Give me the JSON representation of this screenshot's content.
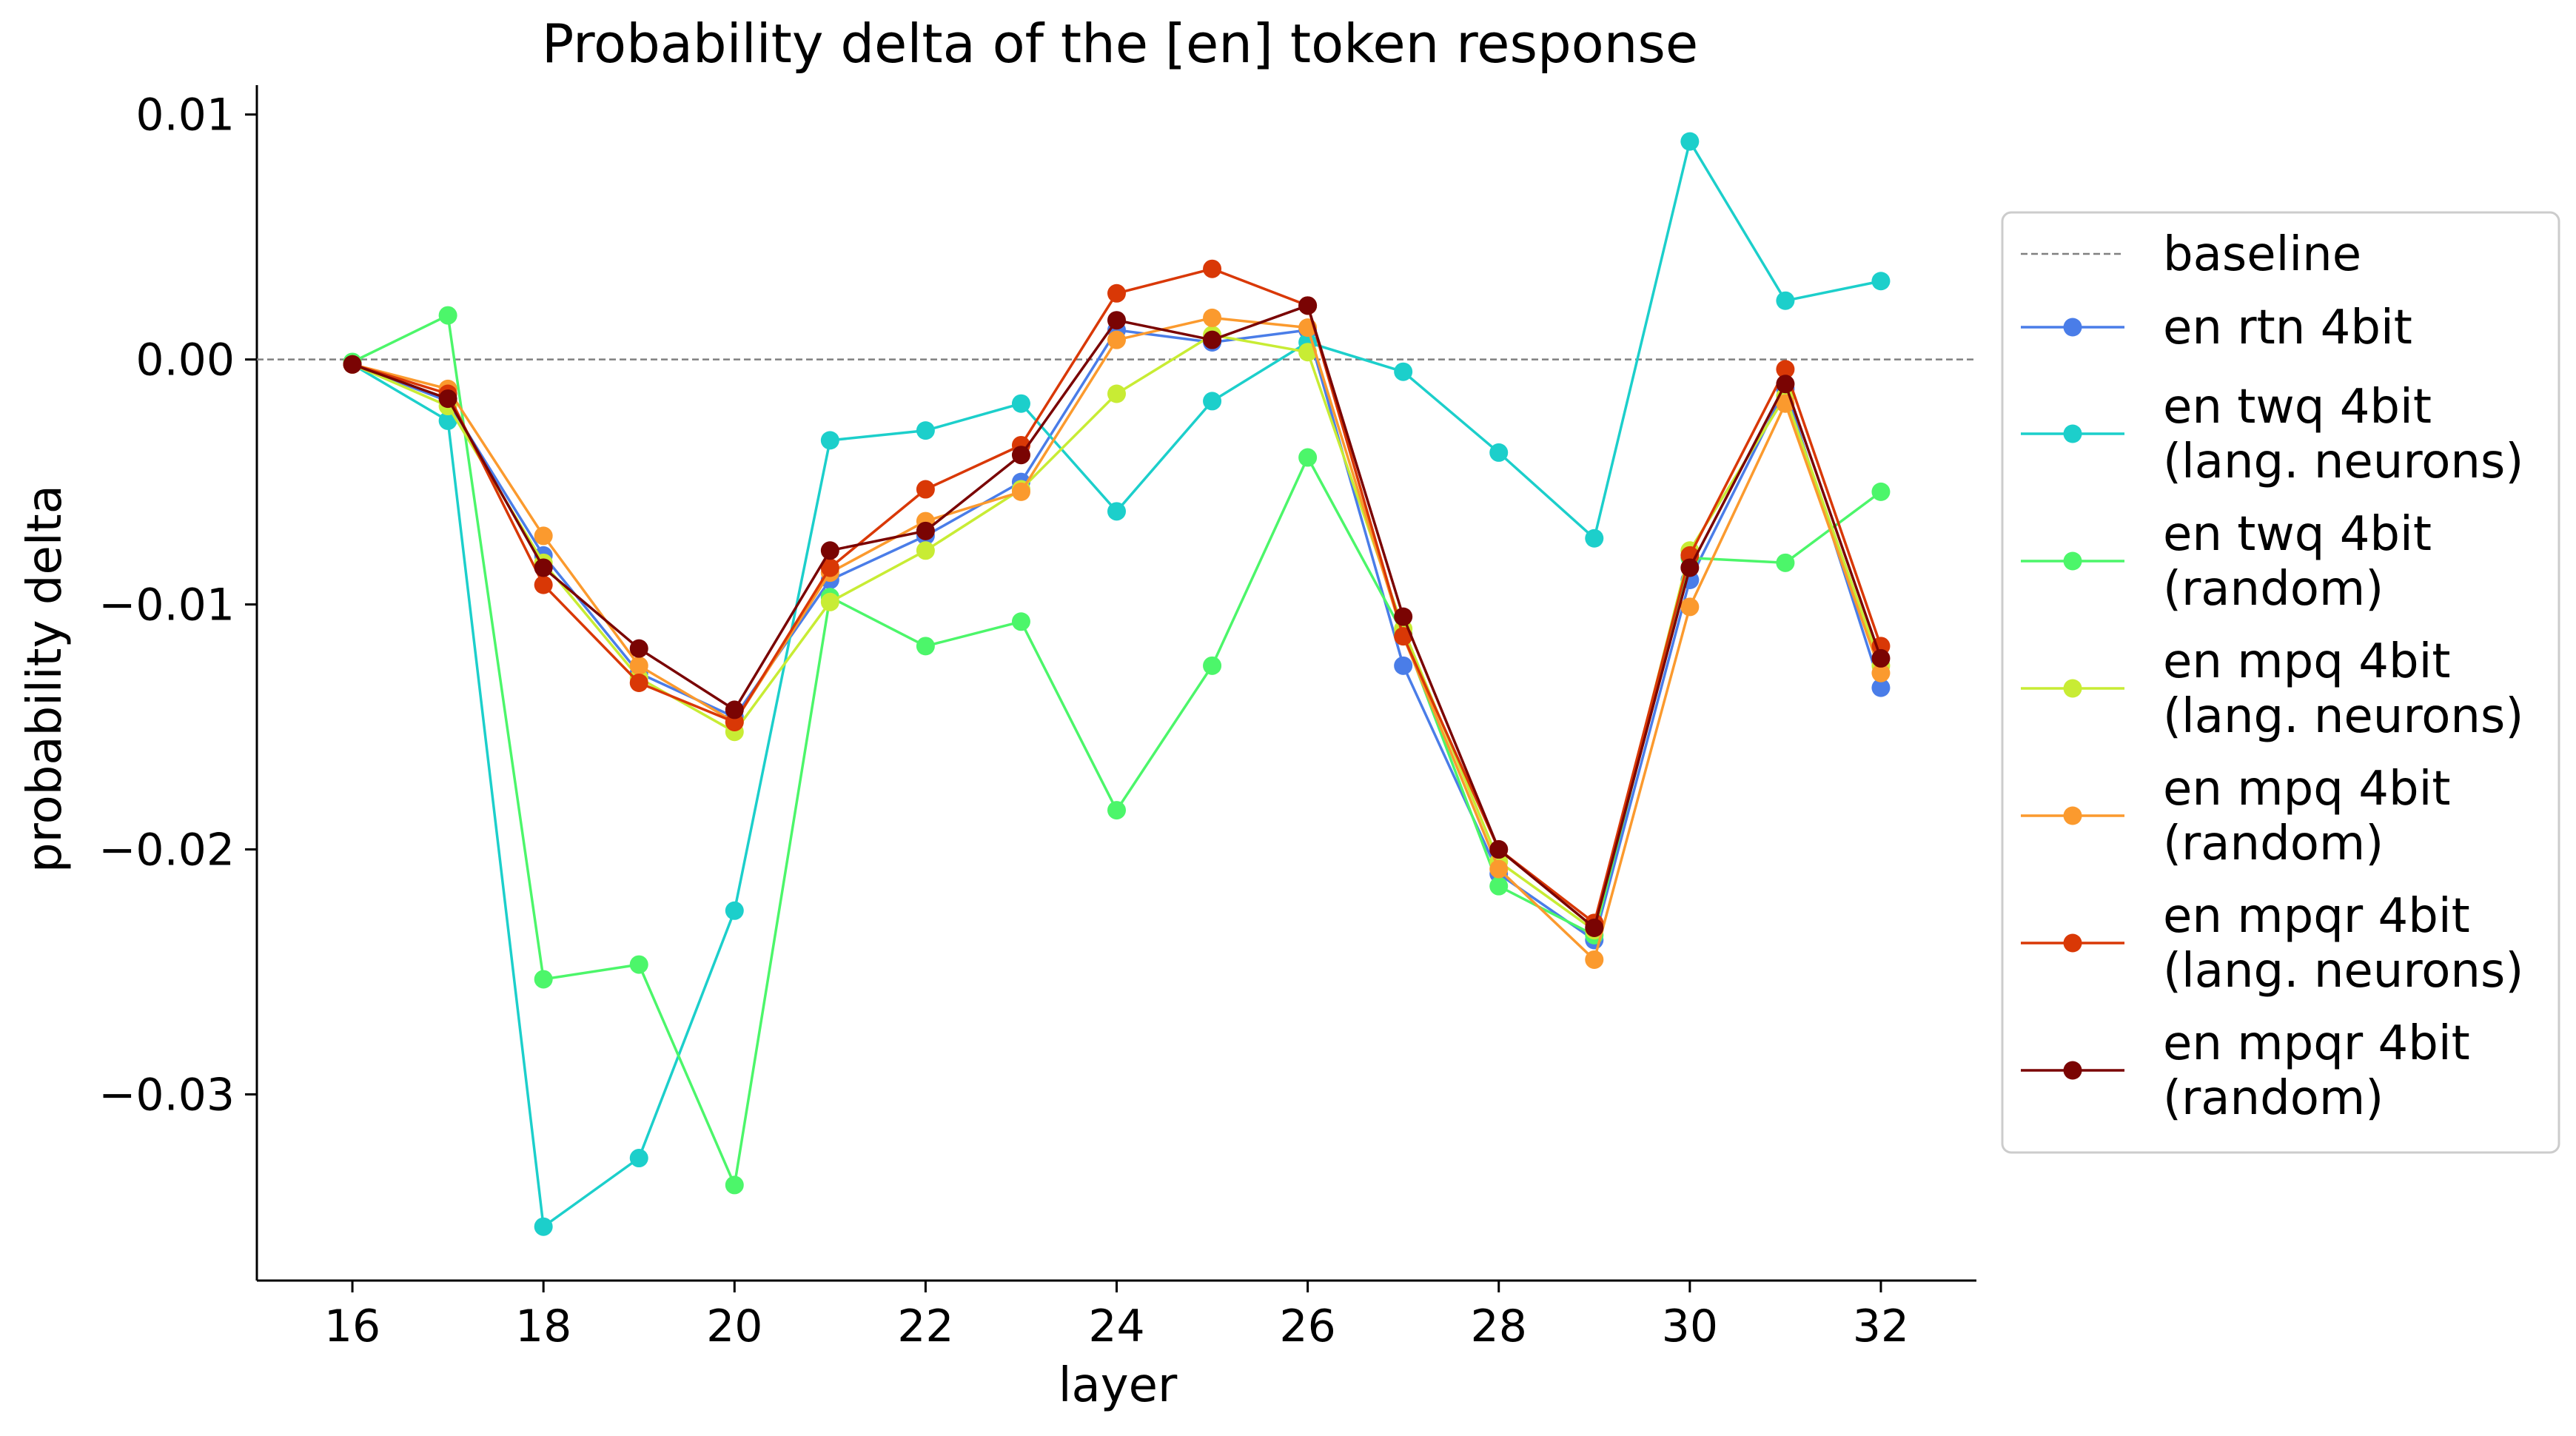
{
  "chart_data": {
    "type": "line",
    "title": "Probability delta of the [en] token response",
    "xlabel": "layer",
    "ylabel": "probability delta",
    "xlim": [
      15,
      33
    ],
    "ylim": [
      -0.0376,
      0.0112
    ],
    "xticks": [
      16,
      18,
      20,
      22,
      24,
      26,
      28,
      30,
      32
    ],
    "xtick_labels": [
      "16",
      "18",
      "20",
      "22",
      "24",
      "26",
      "28",
      "30",
      "32"
    ],
    "yticks": [
      -0.03,
      -0.02,
      -0.01,
      0.0,
      0.01
    ],
    "ytick_labels": [
      "−0.03",
      "−0.02",
      "−0.01",
      "0.00",
      "0.01"
    ],
    "grid": false,
    "legend_position": "right, outside plot area",
    "baseline": {
      "name": "baseline",
      "y": 0.0,
      "color": "#808080",
      "style": "dashed"
    },
    "x": [
      16,
      17,
      18,
      19,
      20,
      21,
      22,
      23,
      24,
      25,
      26,
      27,
      28,
      29,
      30,
      31,
      32
    ],
    "series": [
      {
        "name": "en rtn 4bit",
        "color": "#4a7de8",
        "values": [
          -0.0002,
          -0.0017,
          -0.008,
          -0.0128,
          -0.0146,
          -0.009,
          -0.0072,
          -0.005,
          0.0012,
          0.0007,
          0.0012,
          -0.0125,
          -0.021,
          -0.0237,
          -0.009,
          -0.0012,
          -0.0134
        ]
      },
      {
        "name": "en twq 4bit\n(lang. neurons)",
        "color": "#1ccfcb",
        "values": [
          -0.0002,
          -0.0025,
          -0.0354,
          -0.0326,
          -0.0225,
          -0.0033,
          -0.0029,
          -0.0018,
          -0.0062,
          -0.0017,
          0.0007,
          -0.0005,
          -0.0038,
          -0.0073,
          0.0089,
          0.0024,
          0.0032
        ]
      },
      {
        "name": "en twq 4bit\n(random)",
        "color": "#4cf66a",
        "values": [
          -0.0001,
          0.0018,
          -0.0253,
          -0.0247,
          -0.0337,
          -0.0097,
          -0.0117,
          -0.0107,
          -0.0184,
          -0.0125,
          -0.004,
          -0.0112,
          -0.0215,
          -0.0235,
          -0.0081,
          -0.0083,
          -0.0054
        ]
      },
      {
        "name": "en mpq 4bit\n(lang. neurons)",
        "color": "#c8ec34",
        "values": [
          -0.0002,
          -0.0019,
          -0.0083,
          -0.013,
          -0.0152,
          -0.0099,
          -0.0078,
          -0.0053,
          -0.0014,
          0.001,
          0.0003,
          -0.011,
          -0.0205,
          -0.0233,
          -0.0078,
          -0.0015,
          -0.0125
        ]
      },
      {
        "name": "en mpq 4bit\n(random)",
        "color": "#fb9a2e",
        "values": [
          -0.0002,
          -0.0012,
          -0.0072,
          -0.0125,
          -0.0148,
          -0.0087,
          -0.0066,
          -0.0054,
          0.0008,
          0.0017,
          0.0013,
          -0.0113,
          -0.0208,
          -0.0245,
          -0.0101,
          -0.0018,
          -0.0128
        ]
      },
      {
        "name": "en mpqr 4bit\n(lang. neurons)",
        "color": "#d93806",
        "values": [
          -0.0002,
          -0.0014,
          -0.0092,
          -0.0132,
          -0.0148,
          -0.0085,
          -0.0053,
          -0.0035,
          0.0027,
          0.0037,
          0.0022,
          -0.0113,
          -0.02,
          -0.023,
          -0.008,
          -0.0004,
          -0.0117
        ]
      },
      {
        "name": "en mpqr 4bit\n(random)",
        "color": "#7a0403",
        "values": [
          -0.0002,
          -0.0016,
          -0.0085,
          -0.0118,
          -0.0143,
          -0.0078,
          -0.007,
          -0.0039,
          0.0016,
          0.0008,
          0.0022,
          -0.0105,
          -0.02,
          -0.0232,
          -0.0085,
          -0.001,
          -0.0122
        ]
      }
    ]
  }
}
